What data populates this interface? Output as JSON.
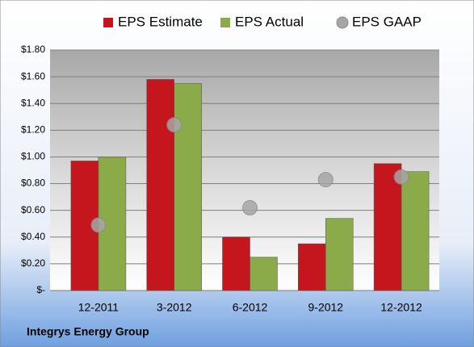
{
  "chart_data": {
    "type": "bar",
    "categories": [
      "12-2011",
      "3-2012",
      "6-2012",
      "9-2012",
      "12-2012"
    ],
    "series": [
      {
        "name": "EPS Estimate",
        "color": "#c4161c",
        "values": [
          0.97,
          1.58,
          0.4,
          0.35,
          0.95
        ]
      },
      {
        "name": "EPS Actual",
        "color": "#8bab4b",
        "values": [
          1.0,
          1.55,
          0.25,
          0.54,
          0.89
        ]
      },
      {
        "name": "EPS GAAP",
        "color": "#a6a6a6",
        "marker": "circle",
        "values": [
          0.49,
          1.24,
          0.62,
          0.83,
          0.85
        ]
      }
    ],
    "ylim": [
      0,
      1.8
    ],
    "yticks": [
      {
        "value": 0,
        "label": "$-"
      },
      {
        "value": 0.2,
        "label": "$0.20"
      },
      {
        "value": 0.4,
        "label": "$0.40"
      },
      {
        "value": 0.6,
        "label": "$0.60"
      },
      {
        "value": 0.8,
        "label": "$0.80"
      },
      {
        "value": 1.0,
        "label": "$1.00"
      },
      {
        "value": 1.2,
        "label": "$1.20"
      },
      {
        "value": 1.4,
        "label": "$1.40"
      },
      {
        "value": 1.6,
        "label": "$1.60"
      },
      {
        "value": 1.8,
        "label": "$1.80"
      }
    ],
    "grid": true,
    "legend": "top",
    "footer": "Integrys Energy Group"
  }
}
